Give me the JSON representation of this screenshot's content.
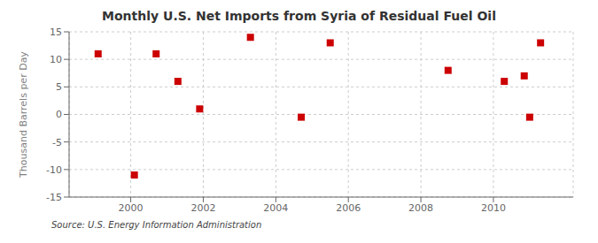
{
  "chart_data": {
    "type": "scatter",
    "title": "Monthly U.S. Net Imports from Syria of Residual Fuel Oil",
    "ylabel": "Thousand Barrels per Day",
    "annotations": [
      "Source: U.S. Energy Information Administration"
    ],
    "x": [
      1999.1,
      2000.1,
      2000.7,
      2001.3,
      2001.9,
      2003.3,
      2004.7,
      2005.5,
      2008.75,
      2010.3,
      2010.85,
      2011.0,
      2011.3
    ],
    "values": [
      11,
      -11,
      11,
      6,
      1,
      14,
      -0.5,
      13,
      8,
      6,
      7,
      -0.5,
      13
    ],
    "color": "#cc0000",
    "marker": "square",
    "xlim": [
      1998.3,
      2012.2
    ],
    "xticks": [
      2000,
      2002,
      2004,
      2006,
      2008,
      2010
    ],
    "ylim": [
      -15,
      15
    ],
    "yticks": [
      -15,
      -10,
      -5,
      0,
      5,
      10,
      15
    ],
    "grid": true
  }
}
